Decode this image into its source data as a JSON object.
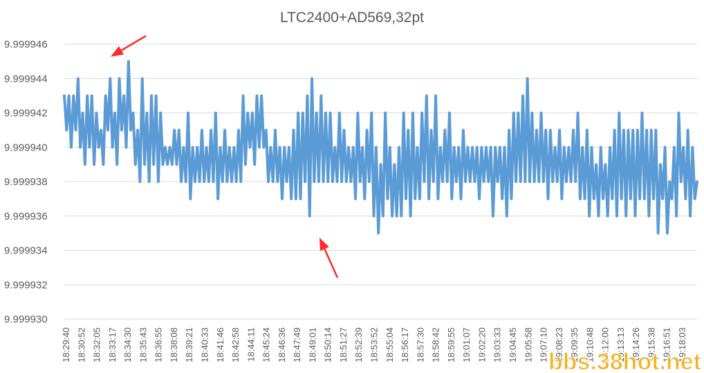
{
  "chart_data": {
    "type": "line",
    "title": "LTC2400+AD569,32pt",
    "xlabel": "",
    "ylabel": "",
    "ylim": [
      9.99993,
      9.999946
    ],
    "y_ticks": [
      "9.999930",
      "9.999932",
      "9.999934",
      "9.999936",
      "9.999938",
      "9.999940",
      "9.999942",
      "9.999944",
      "9.999946"
    ],
    "grid": "horizontal",
    "legend": "none",
    "x_tick_labels": [
      "18:29:40",
      "18:30:52",
      "18:32:05",
      "18:33:17",
      "18:34:30",
      "18:35:43",
      "18:36:55",
      "18:38:08",
      "18:39:21",
      "18:40:33",
      "18:41:46",
      "18:42:58",
      "18:44:11",
      "18:45:24",
      "18:46:36",
      "18:47:49",
      "18:49:01",
      "18:50:14",
      "18:51:27",
      "18:52:39",
      "18:53:52",
      "18:55:04",
      "18:56:17",
      "18:57:30",
      "18:58:42",
      "18:59:55",
      "19:01:07",
      "19:02:20",
      "19:03:33",
      "19:04:45",
      "19:05:58",
      "19:07:10",
      "19:08:23",
      "19:09:35",
      "19:10:48",
      "19:12:00",
      "19:13:13",
      "19:14:26",
      "19:15:38",
      "19:16:51",
      "19:18:03"
    ],
    "series": [
      {
        "color": "#5b9bd5",
        "values": [
          9.999943,
          9.999941,
          9.999943,
          9.99994,
          9.999943,
          9.999941,
          9.999944,
          9.99994,
          9.999942,
          9.999939,
          9.999943,
          9.99994,
          9.999943,
          9.999939,
          9.999942,
          9.99994,
          9.999941,
          9.999939,
          9.999943,
          9.999941,
          9.999944,
          9.99994,
          9.999942,
          9.999939,
          9.999944,
          9.999941,
          9.999943,
          9.99994,
          9.999945,
          9.999941,
          9.999942,
          9.999939,
          9.999941,
          9.999938,
          9.999944,
          9.999939,
          9.999942,
          9.999938,
          9.999943,
          9.999939,
          9.999943,
          9.999938,
          9.999942,
          9.999939,
          9.99994,
          9.999939,
          9.99994,
          9.999939,
          9.999941,
          9.999939,
          9.999941,
          9.999938,
          9.99994,
          9.999938,
          9.999942,
          9.999937,
          9.99994,
          9.999938,
          9.99994,
          9.999938,
          9.999941,
          9.999938,
          9.99994,
          9.999938,
          9.999941,
          9.999938,
          9.999942,
          9.999937,
          9.99994,
          9.999938,
          9.999941,
          9.999938,
          9.99994,
          9.999938,
          9.99994,
          9.999938,
          9.999941,
          9.999938,
          9.999943,
          9.999939,
          9.999942,
          9.99994,
          9.999942,
          9.999939,
          9.999943,
          9.99994,
          9.999943,
          9.99994,
          9.999941,
          9.999938,
          9.99994,
          9.999938,
          9.999941,
          9.999938,
          9.99994,
          9.999937,
          9.99994,
          9.999938,
          9.99994,
          9.999937,
          9.999941,
          9.999937,
          9.999942,
          9.999937,
          9.999942,
          9.999938,
          9.999943,
          9.999936,
          9.999944,
          9.999938,
          9.999942,
          9.999938,
          9.999943,
          9.999938,
          9.999942,
          9.999938,
          9.999942,
          9.999938,
          9.99994,
          9.999938,
          9.999942,
          9.999938,
          9.999941,
          9.999938,
          9.99994,
          9.999938,
          9.99994,
          9.999937,
          9.999942,
          9.999938,
          9.99994,
          9.999937,
          9.999941,
          9.999938,
          9.999942,
          9.999936,
          9.99994,
          9.999935,
          9.999939,
          9.999936,
          9.999942,
          9.999937,
          9.99994,
          9.999936,
          9.999939,
          9.999936,
          9.99994,
          9.999936,
          9.999942,
          9.999937,
          9.999941,
          9.999936,
          9.999942,
          9.999937,
          9.99994,
          9.999937,
          9.999942,
          9.999938,
          9.999943,
          9.999937,
          9.999941,
          9.999938,
          9.999943,
          9.999937,
          9.99994,
          9.999938,
          9.999941,
          9.999938,
          9.999942,
          9.999937,
          9.99994,
          9.999938,
          9.99994,
          9.999937,
          9.999941,
          9.999938,
          9.99994,
          9.999938,
          9.99994,
          9.999938,
          9.99994,
          9.999937,
          9.99994,
          9.999938,
          9.99994,
          9.999938,
          9.99994,
          9.999936,
          9.99994,
          9.999938,
          9.99994,
          9.999937,
          9.99994,
          9.999936,
          9.999941,
          9.999937,
          9.999942,
          9.999938,
          9.999942,
          9.999938,
          9.999943,
          9.999938,
          9.999944,
          9.999938,
          9.999942,
          9.999938,
          9.999941,
          9.999938,
          9.999942,
          9.999938,
          9.999941,
          9.999937,
          9.999941,
          9.999938,
          9.99994,
          9.999938,
          9.999941,
          9.999937,
          9.99994,
          9.999938,
          9.99994,
          9.999938,
          9.999941,
          9.999938,
          9.999942,
          9.999937,
          9.99994,
          9.999937,
          9.999941,
          9.999936,
          9.99994,
          9.999937,
          9.999939,
          9.999936,
          9.99994,
          9.999937,
          9.999939,
          9.999936,
          9.99994,
          9.999937,
          9.999941,
          9.999936,
          9.999942,
          9.999937,
          9.999941,
          9.999936,
          9.999941,
          9.999937,
          9.999941,
          9.999936,
          9.999941,
          9.999937,
          9.999942,
          9.999937,
          9.999941,
          9.999936,
          9.999941,
          9.999937,
          9.999941,
          9.999935,
          9.999939,
          9.999937,
          9.99994,
          9.999935,
          9.999938,
          9.999937,
          9.99994,
          9.999936,
          9.999942,
          9.999938,
          9.99994,
          9.999937,
          9.999941,
          9.999936,
          9.99994,
          9.999937,
          9.999938
        ]
      }
    ],
    "annotations": [
      {
        "type": "arrow",
        "color": "#ff2a2a",
        "points_to": "peak 9.999945 near 18:33:17"
      },
      {
        "type": "arrow",
        "color": "#ff2a2a",
        "points_to": "trough 9.999935 near 18:50:14"
      }
    ]
  },
  "watermark": "bbs.38hot.net"
}
